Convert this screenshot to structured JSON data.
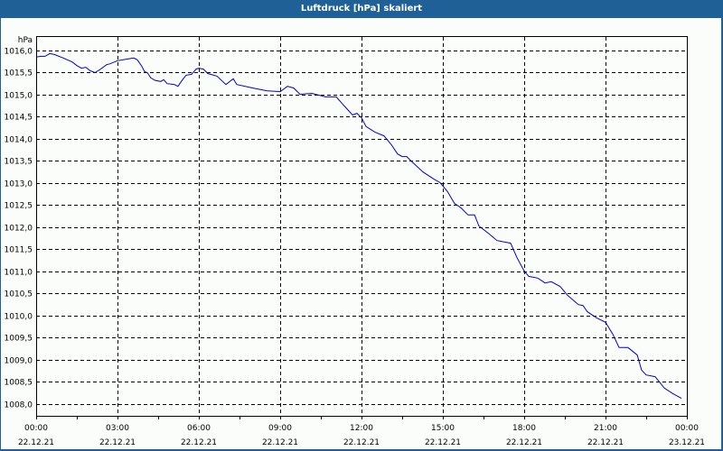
{
  "window": {
    "title": "Luftdruck [hPa] skaliert"
  },
  "colors": {
    "titlebar": "#1f6196",
    "background": "#fbfdfb",
    "line": "#0000cc",
    "grid": "#000000"
  },
  "chart_data": {
    "type": "line",
    "title": "Luftdruck [hPa] skaliert",
    "xlabel": "",
    "ylabel": "hPa",
    "ylim": [
      1007.75,
      1016.3
    ],
    "xlim_hours": [
      0,
      24
    ],
    "y_ticks": [
      "1016,0",
      "1015,5",
      "1015,0",
      "1014,5",
      "1014,0",
      "1013,5",
      "1013,0",
      "1012,5",
      "1012,0",
      "1011,5",
      "1011,0",
      "1010,5",
      "1010,0",
      "1009,5",
      "1009,0",
      "1008,5",
      "1008,0"
    ],
    "y_tick_values": [
      1016.0,
      1015.5,
      1015.0,
      1014.5,
      1014.0,
      1013.5,
      1013.0,
      1012.5,
      1012.0,
      1011.5,
      1011.0,
      1010.5,
      1010.0,
      1009.5,
      1009.0,
      1008.5,
      1008.0
    ],
    "x_ticks": [
      {
        "time": "00:00",
        "date": "22.12.21"
      },
      {
        "time": "03:00",
        "date": "22.12.21"
      },
      {
        "time": "06:00",
        "date": "22.12.21"
      },
      {
        "time": "09:00",
        "date": "22.12.21"
      },
      {
        "time": "12:00",
        "date": "22.12.21"
      },
      {
        "time": "15:00",
        "date": "22.12.21"
      },
      {
        "time": "18:00",
        "date": "22.12.21"
      },
      {
        "time": "21:00",
        "date": "22.12.21"
      },
      {
        "time": "00:00",
        "date": "23.12.21"
      }
    ],
    "grid": true,
    "legend": null,
    "series": [
      {
        "name": "Luftdruck",
        "points": [
          [
            0.0,
            1015.84
          ],
          [
            0.17,
            1015.86
          ],
          [
            0.33,
            1015.86
          ],
          [
            0.5,
            1015.92
          ],
          [
            0.67,
            1015.9
          ],
          [
            1.0,
            1015.82
          ],
          [
            1.33,
            1015.73
          ],
          [
            1.5,
            1015.65
          ],
          [
            1.67,
            1015.59
          ],
          [
            1.83,
            1015.61
          ],
          [
            2.0,
            1015.53
          ],
          [
            2.17,
            1015.49
          ],
          [
            2.33,
            1015.55
          ],
          [
            2.6,
            1015.67
          ],
          [
            2.73,
            1015.69
          ],
          [
            3.0,
            1015.76
          ],
          [
            3.4,
            1015.8
          ],
          [
            3.6,
            1015.82
          ],
          [
            3.73,
            1015.78
          ],
          [
            3.9,
            1015.63
          ],
          [
            4.0,
            1015.51
          ],
          [
            4.1,
            1015.49
          ],
          [
            4.23,
            1015.37
          ],
          [
            4.4,
            1015.31
          ],
          [
            4.6,
            1015.29
          ],
          [
            4.7,
            1015.33
          ],
          [
            4.83,
            1015.24
          ],
          [
            5.1,
            1015.22
          ],
          [
            5.23,
            1015.18
          ],
          [
            5.4,
            1015.33
          ],
          [
            5.53,
            1015.43
          ],
          [
            5.73,
            1015.45
          ],
          [
            5.9,
            1015.57
          ],
          [
            6.0,
            1015.59
          ],
          [
            6.17,
            1015.57
          ],
          [
            6.33,
            1015.47
          ],
          [
            6.67,
            1015.41
          ],
          [
            7.0,
            1015.22
          ],
          [
            7.27,
            1015.35
          ],
          [
            7.4,
            1015.22
          ],
          [
            8.0,
            1015.14
          ],
          [
            8.5,
            1015.08
          ],
          [
            9.0,
            1015.06
          ],
          [
            9.27,
            1015.18
          ],
          [
            9.5,
            1015.14
          ],
          [
            9.73,
            1015.0
          ],
          [
            10.17,
            1015.02
          ],
          [
            10.67,
            1014.94
          ],
          [
            11.07,
            1014.94
          ],
          [
            11.33,
            1014.76
          ],
          [
            11.67,
            1014.53
          ],
          [
            11.83,
            1014.57
          ],
          [
            12.0,
            1014.47
          ],
          [
            12.17,
            1014.27
          ],
          [
            12.5,
            1014.14
          ],
          [
            12.83,
            1014.06
          ],
          [
            13.1,
            1013.86
          ],
          [
            13.33,
            1013.65
          ],
          [
            13.5,
            1013.59
          ],
          [
            13.67,
            1013.59
          ],
          [
            13.83,
            1013.49
          ],
          [
            14.27,
            1013.24
          ],
          [
            14.67,
            1013.08
          ],
          [
            14.9,
            1013.0
          ],
          [
            15.17,
            1012.8
          ],
          [
            15.43,
            1012.53
          ],
          [
            15.67,
            1012.43
          ],
          [
            15.93,
            1012.27
          ],
          [
            16.17,
            1012.27
          ],
          [
            16.33,
            1012.02
          ],
          [
            16.67,
            1011.86
          ],
          [
            17.0,
            1011.69
          ],
          [
            17.5,
            1011.63
          ],
          [
            17.73,
            1011.31
          ],
          [
            18.0,
            1011.0
          ],
          [
            18.17,
            1010.88
          ],
          [
            18.5,
            1010.84
          ],
          [
            18.77,
            1010.73
          ],
          [
            19.0,
            1010.76
          ],
          [
            19.33,
            1010.65
          ],
          [
            19.6,
            1010.45
          ],
          [
            20.0,
            1010.24
          ],
          [
            20.17,
            1010.22
          ],
          [
            20.33,
            1010.08
          ],
          [
            20.67,
            1009.94
          ],
          [
            21.0,
            1009.84
          ],
          [
            21.27,
            1009.57
          ],
          [
            21.5,
            1009.27
          ],
          [
            21.83,
            1009.27
          ],
          [
            22.17,
            1009.1
          ],
          [
            22.33,
            1008.76
          ],
          [
            22.5,
            1008.65
          ],
          [
            22.83,
            1008.61
          ],
          [
            23.17,
            1008.35
          ],
          [
            23.5,
            1008.22
          ],
          [
            23.8,
            1008.12
          ]
        ]
      }
    ]
  }
}
